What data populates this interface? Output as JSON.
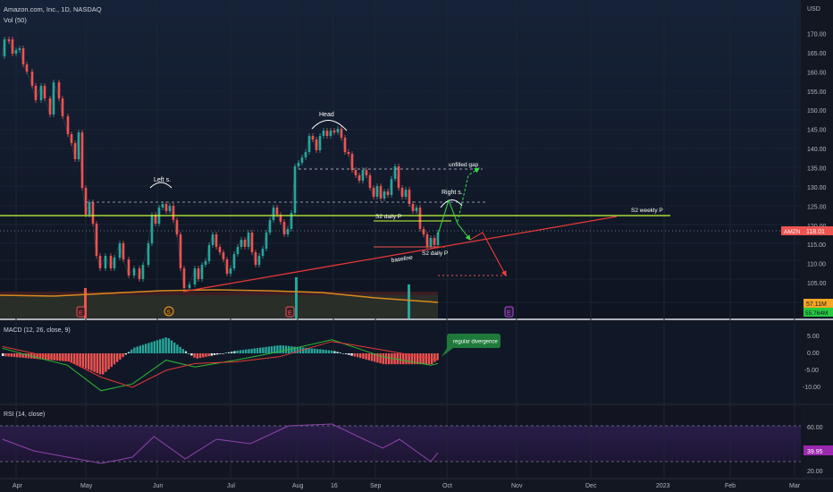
{
  "header": {
    "symbol_title": "Amazon.com, Inc., 1D, NASDAQ",
    "volume_label": "Vol (50)",
    "currency": "USD"
  },
  "price_axis": {
    "ticks": [
      "170.00",
      "165.00",
      "160.00",
      "155.00",
      "150.00",
      "145.00",
      "140.00",
      "135.00",
      "130.00",
      "125.00",
      "120.00",
      "115.00",
      "110.00",
      "105.00",
      "100.00"
    ],
    "last_price_ticker": "AMZN",
    "last_price": "118.01",
    "vol_ma_label": "57.11M",
    "volume_label": "55.764M"
  },
  "annotations": {
    "head": "Head",
    "left_shoulder": "Left s.",
    "right_shoulder": "Right s.",
    "baseline": "baseline",
    "s2_daily_upper": "S2 daily P",
    "s2_daily_lower": "S2 daily P",
    "s2_weekly": "S2 weekly P",
    "unfilled_gap": "unfilled gap",
    "regular_divergence": "regular divergence"
  },
  "event_markers": [
    {
      "type": "earnings",
      "glyph": "E"
    },
    {
      "type": "dividend",
      "glyph": "S"
    },
    {
      "type": "earnings",
      "glyph": "E"
    },
    {
      "type": "earnings",
      "glyph": "E"
    }
  ],
  "macd": {
    "label": "MACD (12, 26, close, 9)",
    "ticks": [
      "5.00",
      "0.00",
      "-5.00",
      "-10.00"
    ]
  },
  "rsi": {
    "label": "RSI (14, close)",
    "ticks": [
      "60.00",
      "20.00"
    ],
    "value": "39.95"
  },
  "time_axis": {
    "labels": [
      "Apr",
      "May",
      "Jun",
      "Jul",
      "Aug",
      "16",
      "Sep",
      "Oct",
      "Nov",
      "Dec",
      "2023",
      "Feb",
      "Mar"
    ]
  },
  "colors": {
    "up": "#26a69a",
    "down": "#ef5350",
    "background": "#131722",
    "macd_line": "#2eb82e",
    "signal_line": "#e53935",
    "rsi_line": "#8e44ad",
    "s2_weekly_line": "#c6ff3a",
    "baseline": "#e53935"
  },
  "chart_data": {
    "type": "candlestick",
    "ylim": [
      100,
      173
    ],
    "price_points": [
      {
        "date": "2022-03-31",
        "close": 163
      },
      {
        "date": "2022-04-04",
        "close": 171
      },
      {
        "date": "2022-04-14",
        "close": 157
      },
      {
        "date": "2022-04-28",
        "close": 144
      },
      {
        "date": "2022-04-29",
        "close": 124
      },
      {
        "date": "2022-05-12",
        "close": 107
      },
      {
        "date": "2022-05-25",
        "close": 111
      },
      {
        "date": "2022-06-03",
        "close": 124
      },
      {
        "date": "2022-06-16",
        "close": 103
      },
      {
        "date": "2022-06-27",
        "close": 114
      },
      {
        "date": "2022-07-14",
        "close": 111
      },
      {
        "date": "2022-07-28",
        "close": 122
      },
      {
        "date": "2022-07-29",
        "close": 135
      },
      {
        "date": "2022-08-16",
        "close": 143
      },
      {
        "date": "2022-09-02",
        "close": 127
      },
      {
        "date": "2022-09-12",
        "close": 137
      },
      {
        "date": "2022-09-21",
        "close": 118
      },
      {
        "date": "2022-09-28",
        "close": 116
      },
      {
        "date": "2022-09-29",
        "close": 118
      }
    ],
    "levels": {
      "s2_weekly_pivot": 122.5,
      "s2_daily_pivot_upper": 120,
      "s2_daily_pivot_lower": 114,
      "last_price": 118.01
    },
    "volume": {
      "last": "55.764M",
      "ma": "57.11M"
    },
    "macd": {
      "ylim": [
        -12,
        7
      ],
      "macd_line": [
        {
          "date": "2022-04-01",
          "value": 1.5
        },
        {
          "date": "2022-04-14",
          "value": -1.0
        },
        {
          "date": "2022-04-28",
          "value": -3.5
        },
        {
          "date": "2022-05-12",
          "value": -11.0
        },
        {
          "date": "2022-05-25",
          "value": -9.0
        },
        {
          "date": "2022-06-08",
          "value": -2.0
        },
        {
          "date": "2022-06-20",
          "value": -4.0
        },
        {
          "date": "2022-07-07",
          "value": -2.0
        },
        {
          "date": "2022-07-25",
          "value": 0.5
        },
        {
          "date": "2022-08-16",
          "value": 4.0
        },
        {
          "date": "2022-09-06",
          "value": -1.0
        },
        {
          "date": "2022-09-26",
          "value": -3.5
        },
        {
          "date": "2022-09-29",
          "value": -3.0
        }
      ],
      "signal_line": [
        {
          "date": "2022-04-01",
          "value": 2.0
        },
        {
          "date": "2022-04-14",
          "value": 0.0
        },
        {
          "date": "2022-04-28",
          "value": -2.0
        },
        {
          "date": "2022-05-12",
          "value": -7.0
        },
        {
          "date": "2022-05-25",
          "value": -10.0
        },
        {
          "date": "2022-06-08",
          "value": -5.0
        },
        {
          "date": "2022-06-20",
          "value": -3.0
        },
        {
          "date": "2022-07-07",
          "value": -2.5
        },
        {
          "date": "2022-07-25",
          "value": -1.0
        },
        {
          "date": "2022-08-16",
          "value": 3.5
        },
        {
          "date": "2022-09-06",
          "value": 1.0
        },
        {
          "date": "2022-09-26",
          "value": -1.5
        },
        {
          "date": "2022-09-29",
          "value": -2.0
        }
      ]
    },
    "rsi": {
      "ylim": [
        15,
        85
      ],
      "levels": [
        70,
        30
      ],
      "values": [
        {
          "date": "2022-04-01",
          "value": 55
        },
        {
          "date": "2022-04-14",
          "value": 42
        },
        {
          "date": "2022-04-28",
          "value": 35
        },
        {
          "date": "2022-05-12",
          "value": 28
        },
        {
          "date": "2022-05-25",
          "value": 35
        },
        {
          "date": "2022-06-03",
          "value": 58
        },
        {
          "date": "2022-06-16",
          "value": 33
        },
        {
          "date": "2022-06-29",
          "value": 55
        },
        {
          "date": "2022-07-13",
          "value": 50
        },
        {
          "date": "2022-07-29",
          "value": 70
        },
        {
          "date": "2022-08-16",
          "value": 72
        },
        {
          "date": "2022-09-06",
          "value": 45
        },
        {
          "date": "2022-09-13",
          "value": 55
        },
        {
          "date": "2022-09-26",
          "value": 30
        },
        {
          "date": "2022-09-29",
          "value": 39.95
        }
      ]
    }
  }
}
